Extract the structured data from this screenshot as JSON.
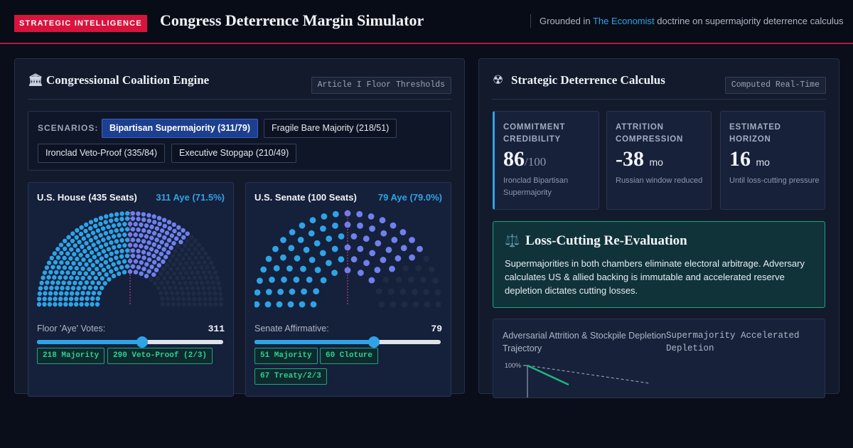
{
  "header": {
    "badge": "STRATEGIC INTELLIGENCE",
    "title": "Congress Deterrence Margin Simulator",
    "grounded_pre": "Grounded in ",
    "grounded_link": "The Economist",
    "grounded_post": " doctrine on supermajority deterrence calculus"
  },
  "coalition": {
    "title": "Congressional Coalition Engine",
    "icon": "capitol-icon",
    "tag": "Article I Floor Thresholds",
    "scenarios_label": "SCENARIOS:",
    "scenarios": [
      {
        "label": "Bipartisan Supermajority (311/79)",
        "active": true
      },
      {
        "label": "Fragile Bare Majority (218/51)",
        "active": false
      },
      {
        "label": "Ironclad Veto-Proof (335/84)",
        "active": false
      },
      {
        "label": "Executive Stopgap (210/49)",
        "active": false
      }
    ],
    "house": {
      "name": "U.S. House (435 Seats)",
      "aye_text": "311 Aye (71.5%)",
      "seats": 435,
      "aye": 311,
      "vote_label": "Floor 'Aye' Votes:",
      "vote_value": "311",
      "slider_fraction": 0.566,
      "thresholds": [
        "218 Majority",
        "290 Veto-Proof (2/3)"
      ]
    },
    "senate": {
      "name": "U.S. Senate (100 Seats)",
      "aye_text": "79 Aye (79.0%)",
      "seats": 100,
      "aye": 79,
      "vote_label": "Senate Affirmative:",
      "vote_value": "79",
      "slider_fraction": 0.64,
      "thresholds": [
        "51 Majority",
        "60 Cloture",
        "67 Treaty/2/3"
      ]
    }
  },
  "calculus": {
    "title": "Strategic Deterrence Calculus",
    "icon": "radiation-icon",
    "tag": "Computed Real-Time",
    "metrics": [
      {
        "label": "COMMITMENT CREDIBILITY",
        "value": "86",
        "unit": "/100",
        "desc": "Ironclad Bipartisan Supermajority"
      },
      {
        "label": "ATTRITION COMPRESSION",
        "value": "-38",
        "unit": "mo",
        "desc": "Russian window reduced"
      },
      {
        "label": "ESTIMATED HORIZON",
        "value": "16",
        "unit": "mo",
        "desc": "Until loss-cutting pressure"
      }
    ],
    "loss": {
      "icon": "scales-icon",
      "title": "Loss-Cutting Re-Evaluation",
      "body": "Supermajorities in both chambers eliminate electoral arbitrage. Adversary calculates US & allied backing is immutable and accelerated reserve depletion dictates cutting losses."
    },
    "trajectory": {
      "title": "Adversarial Attrition & Stockpile Depletion Trajectory",
      "subtitle": "Supermajority Accelerated Depletion",
      "ytick": "100%"
    }
  },
  "colors": {
    "accent": "#2fa3e6",
    "alert": "#d8143d",
    "threshold": "#2fd08f",
    "seat_aye_a": "#2fa3e6",
    "seat_aye_b": "#6f80ee",
    "seat_empty": "#1f2a44"
  }
}
